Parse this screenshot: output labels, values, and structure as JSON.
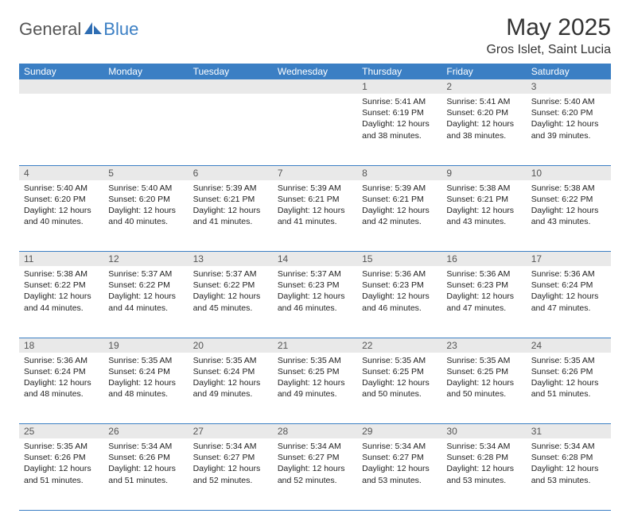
{
  "brand": {
    "general": "General",
    "blue": "Blue"
  },
  "title": {
    "month": "May 2025",
    "location": "Gros Islet, Saint Lucia"
  },
  "colors": {
    "header_bg": "#3b7fc4",
    "daynum_bg": "#e9e9e9",
    "rule": "#3b7fc4"
  },
  "weekdays": [
    "Sunday",
    "Monday",
    "Tuesday",
    "Wednesday",
    "Thursday",
    "Friday",
    "Saturday"
  ],
  "weeks": [
    {
      "nums": [
        "",
        "",
        "",
        "",
        "1",
        "2",
        "3"
      ],
      "cells": [
        null,
        null,
        null,
        null,
        {
          "sunrise": "Sunrise: 5:41 AM",
          "sunset": "Sunset: 6:19 PM",
          "day1": "Daylight: 12 hours",
          "day2": "and 38 minutes."
        },
        {
          "sunrise": "Sunrise: 5:41 AM",
          "sunset": "Sunset: 6:20 PM",
          "day1": "Daylight: 12 hours",
          "day2": "and 38 minutes."
        },
        {
          "sunrise": "Sunrise: 5:40 AM",
          "sunset": "Sunset: 6:20 PM",
          "day1": "Daylight: 12 hours",
          "day2": "and 39 minutes."
        }
      ]
    },
    {
      "nums": [
        "4",
        "5",
        "6",
        "7",
        "8",
        "9",
        "10"
      ],
      "cells": [
        {
          "sunrise": "Sunrise: 5:40 AM",
          "sunset": "Sunset: 6:20 PM",
          "day1": "Daylight: 12 hours",
          "day2": "and 40 minutes."
        },
        {
          "sunrise": "Sunrise: 5:40 AM",
          "sunset": "Sunset: 6:20 PM",
          "day1": "Daylight: 12 hours",
          "day2": "and 40 minutes."
        },
        {
          "sunrise": "Sunrise: 5:39 AM",
          "sunset": "Sunset: 6:21 PM",
          "day1": "Daylight: 12 hours",
          "day2": "and 41 minutes."
        },
        {
          "sunrise": "Sunrise: 5:39 AM",
          "sunset": "Sunset: 6:21 PM",
          "day1": "Daylight: 12 hours",
          "day2": "and 41 minutes."
        },
        {
          "sunrise": "Sunrise: 5:39 AM",
          "sunset": "Sunset: 6:21 PM",
          "day1": "Daylight: 12 hours",
          "day2": "and 42 minutes."
        },
        {
          "sunrise": "Sunrise: 5:38 AM",
          "sunset": "Sunset: 6:21 PM",
          "day1": "Daylight: 12 hours",
          "day2": "and 43 minutes."
        },
        {
          "sunrise": "Sunrise: 5:38 AM",
          "sunset": "Sunset: 6:22 PM",
          "day1": "Daylight: 12 hours",
          "day2": "and 43 minutes."
        }
      ]
    },
    {
      "nums": [
        "11",
        "12",
        "13",
        "14",
        "15",
        "16",
        "17"
      ],
      "cells": [
        {
          "sunrise": "Sunrise: 5:38 AM",
          "sunset": "Sunset: 6:22 PM",
          "day1": "Daylight: 12 hours",
          "day2": "and 44 minutes."
        },
        {
          "sunrise": "Sunrise: 5:37 AM",
          "sunset": "Sunset: 6:22 PM",
          "day1": "Daylight: 12 hours",
          "day2": "and 44 minutes."
        },
        {
          "sunrise": "Sunrise: 5:37 AM",
          "sunset": "Sunset: 6:22 PM",
          "day1": "Daylight: 12 hours",
          "day2": "and 45 minutes."
        },
        {
          "sunrise": "Sunrise: 5:37 AM",
          "sunset": "Sunset: 6:23 PM",
          "day1": "Daylight: 12 hours",
          "day2": "and 46 minutes."
        },
        {
          "sunrise": "Sunrise: 5:36 AM",
          "sunset": "Sunset: 6:23 PM",
          "day1": "Daylight: 12 hours",
          "day2": "and 46 minutes."
        },
        {
          "sunrise": "Sunrise: 5:36 AM",
          "sunset": "Sunset: 6:23 PM",
          "day1": "Daylight: 12 hours",
          "day2": "and 47 minutes."
        },
        {
          "sunrise": "Sunrise: 5:36 AM",
          "sunset": "Sunset: 6:24 PM",
          "day1": "Daylight: 12 hours",
          "day2": "and 47 minutes."
        }
      ]
    },
    {
      "nums": [
        "18",
        "19",
        "20",
        "21",
        "22",
        "23",
        "24"
      ],
      "cells": [
        {
          "sunrise": "Sunrise: 5:36 AM",
          "sunset": "Sunset: 6:24 PM",
          "day1": "Daylight: 12 hours",
          "day2": "and 48 minutes."
        },
        {
          "sunrise": "Sunrise: 5:35 AM",
          "sunset": "Sunset: 6:24 PM",
          "day1": "Daylight: 12 hours",
          "day2": "and 48 minutes."
        },
        {
          "sunrise": "Sunrise: 5:35 AM",
          "sunset": "Sunset: 6:24 PM",
          "day1": "Daylight: 12 hours",
          "day2": "and 49 minutes."
        },
        {
          "sunrise": "Sunrise: 5:35 AM",
          "sunset": "Sunset: 6:25 PM",
          "day1": "Daylight: 12 hours",
          "day2": "and 49 minutes."
        },
        {
          "sunrise": "Sunrise: 5:35 AM",
          "sunset": "Sunset: 6:25 PM",
          "day1": "Daylight: 12 hours",
          "day2": "and 50 minutes."
        },
        {
          "sunrise": "Sunrise: 5:35 AM",
          "sunset": "Sunset: 6:25 PM",
          "day1": "Daylight: 12 hours",
          "day2": "and 50 minutes."
        },
        {
          "sunrise": "Sunrise: 5:35 AM",
          "sunset": "Sunset: 6:26 PM",
          "day1": "Daylight: 12 hours",
          "day2": "and 51 minutes."
        }
      ]
    },
    {
      "nums": [
        "25",
        "26",
        "27",
        "28",
        "29",
        "30",
        "31"
      ],
      "cells": [
        {
          "sunrise": "Sunrise: 5:35 AM",
          "sunset": "Sunset: 6:26 PM",
          "day1": "Daylight: 12 hours",
          "day2": "and 51 minutes."
        },
        {
          "sunrise": "Sunrise: 5:34 AM",
          "sunset": "Sunset: 6:26 PM",
          "day1": "Daylight: 12 hours",
          "day2": "and 51 minutes."
        },
        {
          "sunrise": "Sunrise: 5:34 AM",
          "sunset": "Sunset: 6:27 PM",
          "day1": "Daylight: 12 hours",
          "day2": "and 52 minutes."
        },
        {
          "sunrise": "Sunrise: 5:34 AM",
          "sunset": "Sunset: 6:27 PM",
          "day1": "Daylight: 12 hours",
          "day2": "and 52 minutes."
        },
        {
          "sunrise": "Sunrise: 5:34 AM",
          "sunset": "Sunset: 6:27 PM",
          "day1": "Daylight: 12 hours",
          "day2": "and 53 minutes."
        },
        {
          "sunrise": "Sunrise: 5:34 AM",
          "sunset": "Sunset: 6:28 PM",
          "day1": "Daylight: 12 hours",
          "day2": "and 53 minutes."
        },
        {
          "sunrise": "Sunrise: 5:34 AM",
          "sunset": "Sunset: 6:28 PM",
          "day1": "Daylight: 12 hours",
          "day2": "and 53 minutes."
        }
      ]
    }
  ]
}
